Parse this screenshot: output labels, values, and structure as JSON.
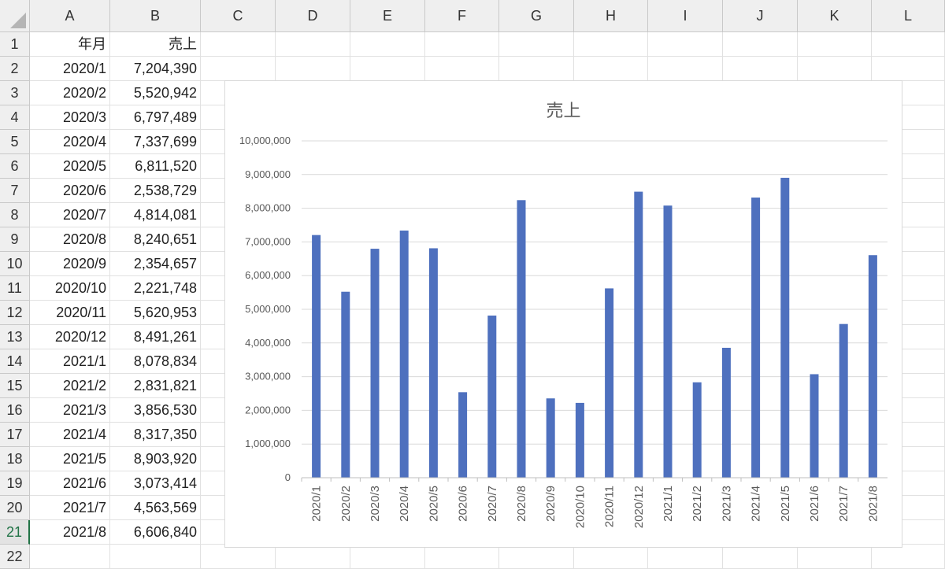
{
  "sheet": {
    "columns": [
      "A",
      "B",
      "C",
      "D",
      "E",
      "F",
      "G",
      "H",
      "I",
      "J",
      "K",
      "L"
    ],
    "rows": [
      "1",
      "2",
      "3",
      "4",
      "5",
      "6",
      "7",
      "8",
      "9",
      "10",
      "11",
      "12",
      "13",
      "14",
      "15",
      "16",
      "17",
      "18",
      "19",
      "20",
      "21",
      "22"
    ],
    "header": {
      "col_a": "年月",
      "col_b": "売上"
    },
    "records": [
      {
        "ym": "2020/1",
        "sales": "7,204,390"
      },
      {
        "ym": "2020/2",
        "sales": "5,520,942"
      },
      {
        "ym": "2020/3",
        "sales": "6,797,489"
      },
      {
        "ym": "2020/4",
        "sales": "7,337,699"
      },
      {
        "ym": "2020/5",
        "sales": "6,811,520"
      },
      {
        "ym": "2020/6",
        "sales": "2,538,729"
      },
      {
        "ym": "2020/7",
        "sales": "4,814,081"
      },
      {
        "ym": "2020/8",
        "sales": "8,240,651"
      },
      {
        "ym": "2020/9",
        "sales": "2,354,657"
      },
      {
        "ym": "2020/10",
        "sales": "2,221,748"
      },
      {
        "ym": "2020/11",
        "sales": "5,620,953"
      },
      {
        "ym": "2020/12",
        "sales": "8,491,261"
      },
      {
        "ym": "2021/1",
        "sales": "8,078,834"
      },
      {
        "ym": "2021/2",
        "sales": "2,831,821"
      },
      {
        "ym": "2021/3",
        "sales": "3,856,530"
      },
      {
        "ym": "2021/4",
        "sales": "8,317,350"
      },
      {
        "ym": "2021/5",
        "sales": "8,903,920"
      },
      {
        "ym": "2021/6",
        "sales": "3,073,414"
      },
      {
        "ym": "2021/7",
        "sales": "4,563,569"
      },
      {
        "ym": "2021/8",
        "sales": "6,606,840"
      }
    ],
    "active_row": "21"
  },
  "chart_data": {
    "type": "bar",
    "title": "売上",
    "categories": [
      "2020/1",
      "2020/2",
      "2020/3",
      "2020/4",
      "2020/5",
      "2020/6",
      "2020/7",
      "2020/8",
      "2020/9",
      "2020/10",
      "2020/11",
      "2020/12",
      "2021/1",
      "2021/2",
      "2021/3",
      "2021/4",
      "2021/5",
      "2021/6",
      "2021/7",
      "2021/8"
    ],
    "values": [
      7204390,
      5520942,
      6797489,
      7337699,
      6811520,
      2538729,
      4814081,
      8240651,
      2354657,
      2221748,
      5620953,
      8491261,
      8078834,
      2831821,
      3856530,
      8317350,
      8903920,
      3073414,
      4563569,
      6606840
    ],
    "ylim": [
      0,
      10000000
    ],
    "yticks": [
      "0",
      "1,000,000",
      "2,000,000",
      "3,000,000",
      "4,000,000",
      "5,000,000",
      "6,000,000",
      "7,000,000",
      "8,000,000",
      "9,000,000",
      "10,000,000"
    ],
    "bar_color": "#4e70be",
    "gridline_color": "#d9d9d9",
    "grid": true,
    "legend": "none"
  }
}
